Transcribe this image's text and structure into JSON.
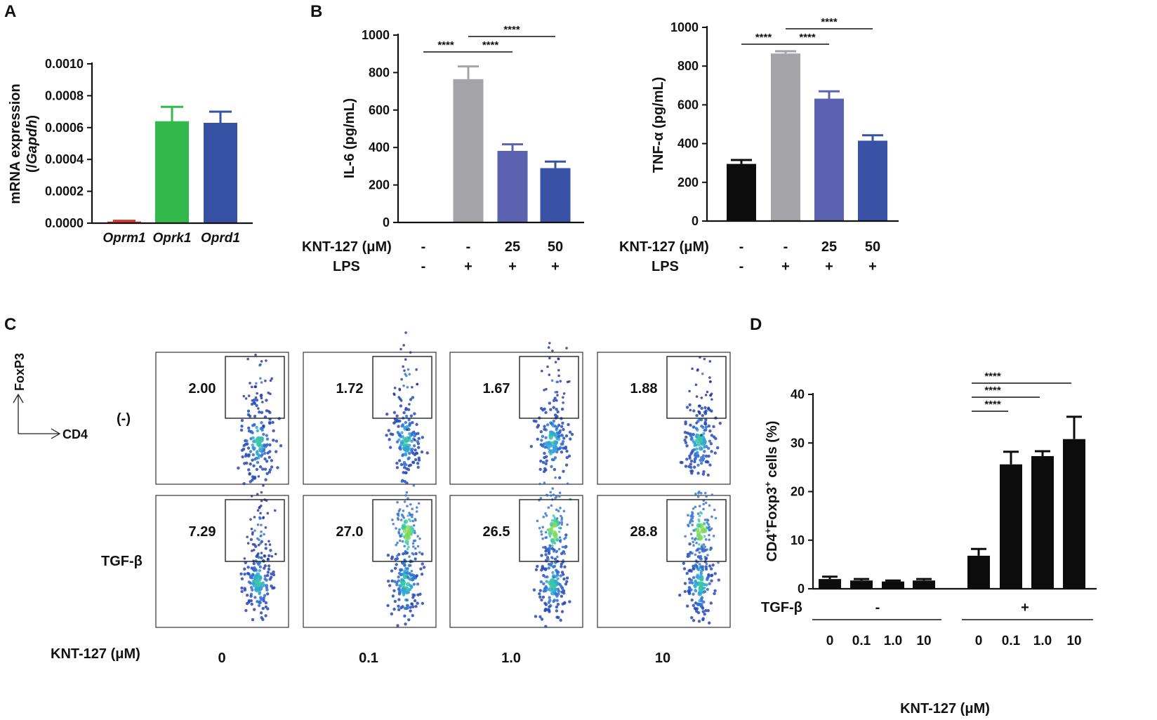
{
  "colors": {
    "red": "#d9342b",
    "green": "#31b94b",
    "blue_dark": "#3650a3",
    "gray": "#a4a4a8",
    "periwinkle": "#5b63b0",
    "royal": "#3a52a6",
    "black": "#0c0c0c",
    "axis": "#111111"
  },
  "chart_data": [
    {
      "panel": "A",
      "type": "bar",
      "categories": [
        "Oprm1",
        "Oprk1",
        "Oprd1"
      ],
      "values": [
        1e-05,
        0.00064,
        0.00063
      ],
      "errors": [
        5e-06,
        9e-05,
        7e-05
      ],
      "colors": [
        "#d9342b",
        "#31b94b",
        "#3650a3"
      ],
      "ylabel": [
        "mRNA expression",
        "(/Gapdh)"
      ],
      "ylim": [
        0,
        0.001
      ],
      "yticks": [
        "0.0000",
        "0.0002",
        "0.0004",
        "0.0006",
        "0.0008",
        "0.0010"
      ]
    },
    {
      "panel": "B",
      "type": "bar",
      "values": [
        0,
        765,
        382,
        290
      ],
      "errors": [
        0,
        68,
        35,
        35
      ],
      "colors": [
        "#a4a4a8",
        "#a4a4a8",
        "#5b63b0",
        "#3a52a6"
      ],
      "ylabel": "IL-6 (pg/mL)",
      "ylim": [
        0,
        1000
      ],
      "yticks": [
        "0",
        "200",
        "400",
        "600",
        "800",
        "1000"
      ],
      "row_labels": [
        "KNT-127 (μM)",
        "LPS"
      ],
      "knt_values": [
        "-",
        "-",
        "25",
        "50"
      ],
      "lps_values": [
        "-",
        "+",
        "+",
        "+"
      ],
      "significance": [
        {
          "from": 0,
          "to": 1,
          "label": "****",
          "level": 0
        },
        {
          "from": 1,
          "to": 2,
          "label": "****",
          "level": 0
        },
        {
          "from": 1,
          "to": 3,
          "label": "****",
          "level": 1
        }
      ]
    },
    {
      "panel": "B2",
      "type": "bar",
      "values": [
        295,
        865,
        632,
        415
      ],
      "errors": [
        20,
        12,
        38,
        28
      ],
      "colors": [
        "#0c0c0c",
        "#a4a4a8",
        "#5b63b0",
        "#3a52a6"
      ],
      "ylabel": "TNF-α (pg/mL)",
      "ylim": [
        0,
        1000
      ],
      "yticks": [
        "0",
        "200",
        "400",
        "600",
        "800",
        "1000"
      ],
      "row_labels": [
        "KNT-127 (μM)",
        "LPS"
      ],
      "knt_values": [
        "-",
        "-",
        "25",
        "50"
      ],
      "lps_values": [
        "-",
        "+",
        "+",
        "+"
      ],
      "significance": [
        {
          "from": 0,
          "to": 1,
          "label": "****",
          "level": 0
        },
        {
          "from": 1,
          "to": 2,
          "label": "****",
          "level": 0
        },
        {
          "from": 1,
          "to": 3,
          "label": "****",
          "level": 1
        }
      ]
    },
    {
      "panel": "C",
      "type": "scatter",
      "axis_y": "FoxP3",
      "axis_x": "CD4",
      "row_labels": [
        "(-)",
        "TGF-β"
      ],
      "col_labels": [
        "0",
        "0.1",
        "1.0",
        "10"
      ],
      "col_axis_label": "KNT-127 (μM)",
      "gate_values": [
        [
          "2.00",
          "1.72",
          "1.67",
          "1.88"
        ],
        [
          "7.29",
          "27.0",
          "26.5",
          "28.8"
        ]
      ]
    },
    {
      "panel": "D",
      "type": "bar",
      "values": [
        2.0,
        1.7,
        1.5,
        1.7,
        6.8,
        25.6,
        27.3,
        30.8
      ],
      "errors": [
        0.5,
        0.3,
        0.2,
        0.3,
        1.4,
        2.6,
        1.0,
        4.6
      ],
      "ylabel": "CD4+Foxp3+ cells (%)",
      "ylim": [
        0,
        40
      ],
      "yticks": [
        "0",
        "10",
        "20",
        "30",
        "40"
      ],
      "tgf_label": "TGF-β",
      "tgf_values": [
        "-",
        "+"
      ],
      "knt_values": [
        "0",
        "0.1",
        "1.0",
        "10",
        "0",
        "0.1",
        "1.0",
        "10"
      ],
      "xlabel": "KNT-127 (μM)",
      "significance": [
        {
          "from": 4,
          "to": 5,
          "label": "****",
          "level": 0
        },
        {
          "from": 4,
          "to": 6,
          "label": "****",
          "level": 1
        },
        {
          "from": 4,
          "to": 7,
          "label": "****",
          "level": 2
        }
      ]
    }
  ],
  "panel_labels": [
    "A",
    "B",
    "C",
    "D"
  ]
}
